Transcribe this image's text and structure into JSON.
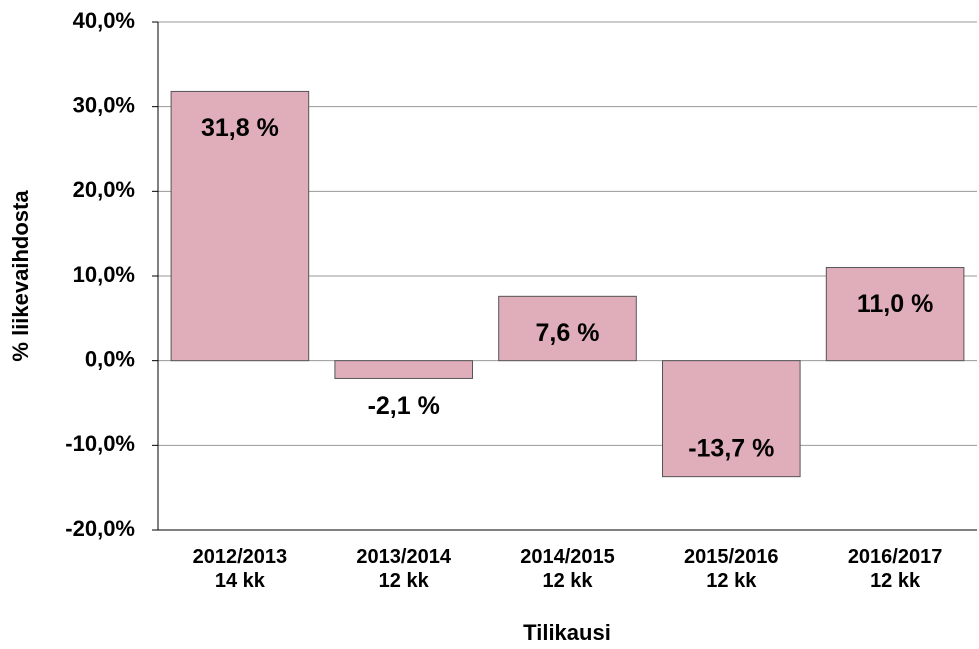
{
  "chart_data": {
    "type": "bar",
    "y_label": "% liikevaihdosta",
    "x_label": "Tilikausi",
    "categories": [
      "2012/2013\n14 kk",
      "2013/2014\n12 kk",
      "2014/2015\n12 kk",
      "2015/2016\n12 kk",
      "2016/2017\n12 kk"
    ],
    "values": [
      31.8,
      -2.1,
      7.6,
      -13.7,
      11.0
    ],
    "value_labels": [
      "31,8 %",
      "-2,1 %",
      "7,6 %",
      "-13,7 %",
      "11,0 %"
    ],
    "color": "#e0aebb",
    "ylim": [
      -20,
      40
    ],
    "yticks": [
      {
        "value": -20,
        "label": "-20,0%"
      },
      {
        "value": -10,
        "label": "-10,0%"
      },
      {
        "value": 0,
        "label": "0,0%"
      },
      {
        "value": 10,
        "label": "10,0%"
      },
      {
        "value": 20,
        "label": "20,0%"
      },
      {
        "value": 30,
        "label": "30,0%"
      },
      {
        "value": 40,
        "label": "40,0%"
      }
    ],
    "grid": true
  }
}
